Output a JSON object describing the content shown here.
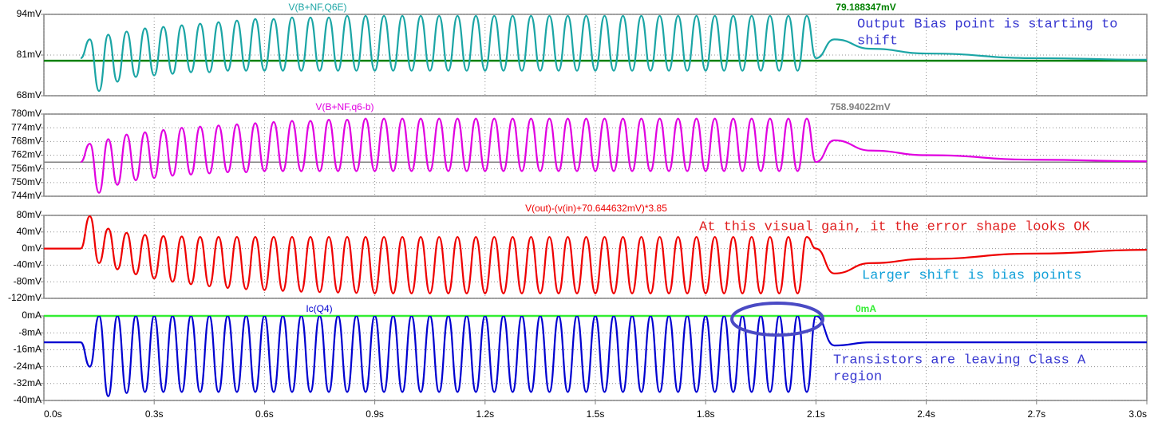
{
  "chart_data": [
    {
      "type": "line",
      "title": "V(B+NF,Q6E)",
      "ylim": [
        68,
        94
      ],
      "yticks": [
        {
          "value": 68,
          "label": "68mV"
        },
        {
          "value": 81,
          "label": "81mV"
        },
        {
          "value": 94,
          "label": "94mV"
        }
      ],
      "grid": true,
      "cursor": {
        "value": 79.188347,
        "label": "79.188347mV",
        "color": "#008000"
      },
      "annotations": [
        [
          "Output Bias point is starting to",
          "shift"
        ]
      ],
      "series": [
        {
          "name": "V(B+NF,Q6E)",
          "color": "#1ba5a5",
          "x": [
            0,
            0.1,
            0.125,
            0.15,
            0.175,
            0.2,
            0.225,
            0.25,
            0.275,
            0.3,
            0.325,
            0.35,
            0.375,
            0.4,
            0.425,
            0.45,
            0.475,
            0.5,
            0.525,
            0.55,
            0.575,
            0.6,
            0.625,
            0.65,
            0.675,
            0.7,
            0.725,
            0.75,
            0.775,
            0.8,
            0.825,
            0.85,
            0.875,
            0.9,
            0.925,
            0.95,
            0.975,
            1.0,
            1.025,
            1.05,
            1.075,
            1.1,
            1.125,
            1.15,
            1.175,
            1.2,
            1.225,
            1.25,
            1.275,
            1.3,
            1.325,
            1.35,
            1.375,
            1.4,
            1.425,
            1.45,
            1.475,
            1.5,
            1.525,
            1.55,
            1.575,
            1.6,
            1.625,
            1.65,
            1.675,
            1.7,
            1.725,
            1.75,
            1.775,
            1.8,
            1.825,
            1.85,
            1.875,
            1.9,
            1.925,
            1.95,
            1.975,
            2.0,
            2.025,
            2.05,
            2.075,
            2.1,
            2.15,
            2.25,
            2.4,
            2.7,
            3.0
          ],
          "values": [
            null,
            80,
            86,
            69.5,
            87.5,
            72.5,
            88.5,
            74,
            89.5,
            74.5,
            90,
            75,
            90.5,
            75.5,
            91,
            75.5,
            91.5,
            76,
            92,
            76,
            92.5,
            76,
            92.5,
            76,
            93,
            76,
            93,
            76,
            93,
            76,
            93.5,
            76,
            93.5,
            76,
            93.5,
            76,
            93.5,
            76,
            93.5,
            76,
            93.5,
            76,
            93.5,
            76,
            93.5,
            76,
            93.5,
            76,
            93.5,
            76,
            93.5,
            76,
            93.5,
            76,
            93.5,
            76,
            93.5,
            76,
            93.5,
            76,
            93.5,
            76,
            93.5,
            76,
            93.5,
            76,
            93.5,
            76,
            93.5,
            76,
            93.5,
            76,
            93.5,
            76,
            93.5,
            76,
            93.5,
            76,
            93.5,
            76,
            93.5,
            80,
            86,
            83,
            81.5,
            80,
            79.5
          ]
        }
      ]
    },
    {
      "type": "line",
      "title": "V(B+NF,q6-b)",
      "ylim": [
        744,
        780
      ],
      "yticks": [
        {
          "value": 744,
          "label": "744mV"
        },
        {
          "value": 750,
          "label": "750mV"
        },
        {
          "value": 756,
          "label": "756mV"
        },
        {
          "value": 762,
          "label": "762mV"
        },
        {
          "value": 768,
          "label": "768mV"
        },
        {
          "value": 774,
          "label": "774mV"
        },
        {
          "value": 780,
          "label": "780mV"
        }
      ],
      "grid": true,
      "cursor": {
        "value": 758.94022,
        "label": "758.94022mV",
        "color": "#808080"
      },
      "series": [
        {
          "name": "V(B+NF,q6-b)",
          "color": "#e000e0",
          "x": [
            0,
            0.1,
            0.125,
            0.15,
            0.175,
            0.2,
            0.225,
            0.25,
            0.275,
            0.3,
            0.325,
            0.35,
            0.375,
            0.4,
            0.425,
            0.45,
            0.475,
            0.5,
            0.525,
            0.55,
            0.575,
            0.6,
            0.625,
            0.65,
            0.675,
            0.7,
            0.725,
            0.75,
            0.775,
            0.8,
            0.825,
            0.85,
            0.875,
            0.9,
            0.925,
            0.95,
            0.975,
            1.0,
            1.025,
            1.05,
            1.075,
            1.1,
            1.125,
            1.15,
            1.175,
            1.2,
            1.225,
            1.25,
            1.275,
            1.3,
            1.325,
            1.35,
            1.375,
            1.4,
            1.425,
            1.45,
            1.475,
            1.5,
            1.525,
            1.55,
            1.575,
            1.6,
            1.625,
            1.65,
            1.675,
            1.7,
            1.725,
            1.75,
            1.775,
            1.8,
            1.825,
            1.85,
            1.875,
            1.9,
            1.925,
            1.95,
            1.975,
            2.0,
            2.025,
            2.05,
            2.075,
            2.1,
            2.15,
            2.25,
            2.4,
            2.7,
            3.0
          ],
          "values": [
            null,
            759,
            767,
            745.5,
            769,
            749,
            771,
            751,
            772,
            752,
            773,
            753,
            774,
            753.5,
            774.5,
            754,
            775,
            754.5,
            775.5,
            754.5,
            776,
            755,
            776.5,
            755,
            777,
            755,
            777,
            755,
            777.5,
            755,
            777.5,
            755,
            778,
            755,
            778,
            755,
            778,
            755,
            778,
            755,
            778,
            755,
            778,
            755,
            778,
            755,
            778,
            755,
            778,
            755,
            778,
            755,
            778,
            755,
            778,
            755,
            778,
            755,
            778,
            755,
            778,
            755,
            778,
            755,
            778,
            755,
            778,
            755,
            778,
            755,
            778,
            755,
            778,
            755,
            778,
            755,
            778,
            755,
            778,
            755,
            778,
            759,
            768.5,
            764,
            762,
            760,
            759.3
          ]
        }
      ]
    },
    {
      "type": "line",
      "title": "V(out)-(v(in)+70.644632mV)*3.85",
      "ylim": [
        -120,
        80
      ],
      "yticks": [
        {
          "value": -120,
          "label": "-120mV"
        },
        {
          "value": -80,
          "label": "-80mV"
        },
        {
          "value": -40,
          "label": "-40mV"
        },
        {
          "value": 0,
          "label": "0mV"
        },
        {
          "value": 40,
          "label": "40mV"
        },
        {
          "value": 80,
          "label": "80mV"
        }
      ],
      "grid": true,
      "annotations": [
        [
          "At this visual gain, it the error shape looks OK"
        ],
        [
          "Larger shift is bias points"
        ]
      ],
      "series": [
        {
          "name": "V(out)-(v(in)+70.644632mV)*3.85",
          "color": "#ee0000",
          "x": [
            0,
            0.1,
            0.125,
            0.15,
            0.175,
            0.2,
            0.225,
            0.25,
            0.275,
            0.3,
            0.325,
            0.35,
            0.375,
            0.4,
            0.425,
            0.45,
            0.475,
            0.5,
            0.525,
            0.55,
            0.575,
            0.6,
            0.625,
            0.65,
            0.675,
            0.7,
            0.725,
            0.75,
            0.775,
            0.8,
            0.825,
            0.85,
            0.875,
            0.9,
            0.925,
            0.95,
            0.975,
            1.0,
            1.025,
            1.05,
            1.075,
            1.1,
            1.125,
            1.15,
            1.175,
            1.2,
            1.225,
            1.25,
            1.275,
            1.3,
            1.325,
            1.35,
            1.375,
            1.4,
            1.425,
            1.45,
            1.475,
            1.5,
            1.525,
            1.55,
            1.575,
            1.6,
            1.625,
            1.65,
            1.675,
            1.7,
            1.725,
            1.75,
            1.775,
            1.8,
            1.825,
            1.85,
            1.875,
            1.9,
            1.925,
            1.95,
            1.975,
            2.0,
            2.025,
            2.05,
            2.075,
            2.1,
            2.15,
            2.25,
            2.4,
            2.7,
            3.0
          ],
          "values": [
            0,
            0,
            78,
            -35,
            48,
            -50,
            38,
            -62,
            33,
            -72,
            30,
            -80,
            29,
            -86,
            28,
            -91,
            28,
            -95,
            28,
            -98,
            28,
            -100,
            28,
            -102,
            28,
            -104,
            28,
            -105,
            28,
            -106,
            28,
            -107,
            28,
            -108,
            28,
            -108,
            28,
            -108,
            28,
            -108,
            28,
            -108,
            28,
            -108,
            28,
            -108,
            28,
            -108,
            28,
            -108,
            28,
            -108,
            28,
            -108,
            28,
            -108,
            28,
            -108,
            28,
            -108,
            28,
            -108,
            28,
            -108,
            28,
            -108,
            28,
            -108,
            28,
            -108,
            28,
            -108,
            28,
            -108,
            28,
            -108,
            28,
            -108,
            28,
            -108,
            28,
            0,
            -60,
            -35,
            -25,
            -12,
            -3
          ]
        }
      ]
    },
    {
      "type": "line",
      "title": "Ic(Q4)",
      "ylim": [
        -40,
        0
      ],
      "yticks": [
        {
          "value": -40,
          "label": "-40mA"
        },
        {
          "value": -32,
          "label": "-32mA"
        },
        {
          "value": -24,
          "label": "-24mA"
        },
        {
          "value": -16,
          "label": "-16mA"
        },
        {
          "value": -8,
          "label": "-8mA"
        },
        {
          "value": 0,
          "label": "0mA"
        }
      ],
      "grid": true,
      "cursor": {
        "value": 0,
        "label": "0mA",
        "color": "#33ee33"
      },
      "annotations": [
        [
          "Transistors are leaving Class A",
          "region"
        ]
      ],
      "xlim": [
        0,
        3
      ],
      "xticks": [
        {
          "value": 0,
          "label": "0.0s"
        },
        {
          "value": 0.3,
          "label": "0.3s"
        },
        {
          "value": 0.6,
          "label": "0.6s"
        },
        {
          "value": 0.9,
          "label": "0.9s"
        },
        {
          "value": 1.2,
          "label": "1.2s"
        },
        {
          "value": 1.5,
          "label": "1.5s"
        },
        {
          "value": 1.8,
          "label": "1.8s"
        },
        {
          "value": 2.1,
          "label": "2.1s"
        },
        {
          "value": 2.4,
          "label": "2.4s"
        },
        {
          "value": 2.7,
          "label": "2.7s"
        },
        {
          "value": 3,
          "label": "3.0s"
        }
      ],
      "series": [
        {
          "name": "Ic(Q4)",
          "color": "#0000d0",
          "x": [
            0,
            0.1,
            0.125,
            0.15,
            0.175,
            0.2,
            0.225,
            0.25,
            0.275,
            0.3,
            0.325,
            0.35,
            0.375,
            0.4,
            0.425,
            0.45,
            0.475,
            0.5,
            0.525,
            0.55,
            0.575,
            0.6,
            0.625,
            0.65,
            0.675,
            0.7,
            0.725,
            0.75,
            0.775,
            0.8,
            0.825,
            0.85,
            0.875,
            0.9,
            0.925,
            0.95,
            0.975,
            1.0,
            1.025,
            1.05,
            1.075,
            1.1,
            1.125,
            1.15,
            1.175,
            1.2,
            1.225,
            1.25,
            1.275,
            1.3,
            1.325,
            1.35,
            1.375,
            1.4,
            1.425,
            1.45,
            1.475,
            1.5,
            1.525,
            1.55,
            1.575,
            1.6,
            1.625,
            1.65,
            1.675,
            1.7,
            1.725,
            1.75,
            1.775,
            1.8,
            1.825,
            1.85,
            1.875,
            1.9,
            1.925,
            1.95,
            1.975,
            2.0,
            2.025,
            2.05,
            2.075,
            2.1,
            2.15,
            2.25,
            2.4,
            2.7,
            3.0
          ],
          "values": [
            -12.5,
            -12.5,
            -24,
            0,
            -38,
            0,
            -36.5,
            0,
            -36,
            0,
            -36,
            0,
            -36,
            0,
            -36,
            0,
            -36,
            0,
            -36,
            0,
            -36,
            0,
            -36,
            0,
            -36,
            0,
            -36,
            0,
            -36,
            0,
            -36,
            0,
            -36,
            0,
            -36,
            0,
            -36,
            0,
            -36,
            0,
            -36,
            0,
            -36,
            0,
            -36,
            0,
            -36,
            0,
            -36,
            0,
            -36,
            0,
            -36,
            0,
            -36,
            0,
            -36,
            0,
            -36,
            0,
            -36,
            0,
            -36,
            0,
            -36,
            0,
            -36,
            0,
            -36,
            0,
            -36,
            0,
            -36,
            0,
            -36,
            0,
            -36,
            0,
            -36,
            0,
            -36,
            0,
            -14,
            -12.5,
            -12.5,
            -12.5,
            -12.5
          ]
        }
      ]
    }
  ]
}
